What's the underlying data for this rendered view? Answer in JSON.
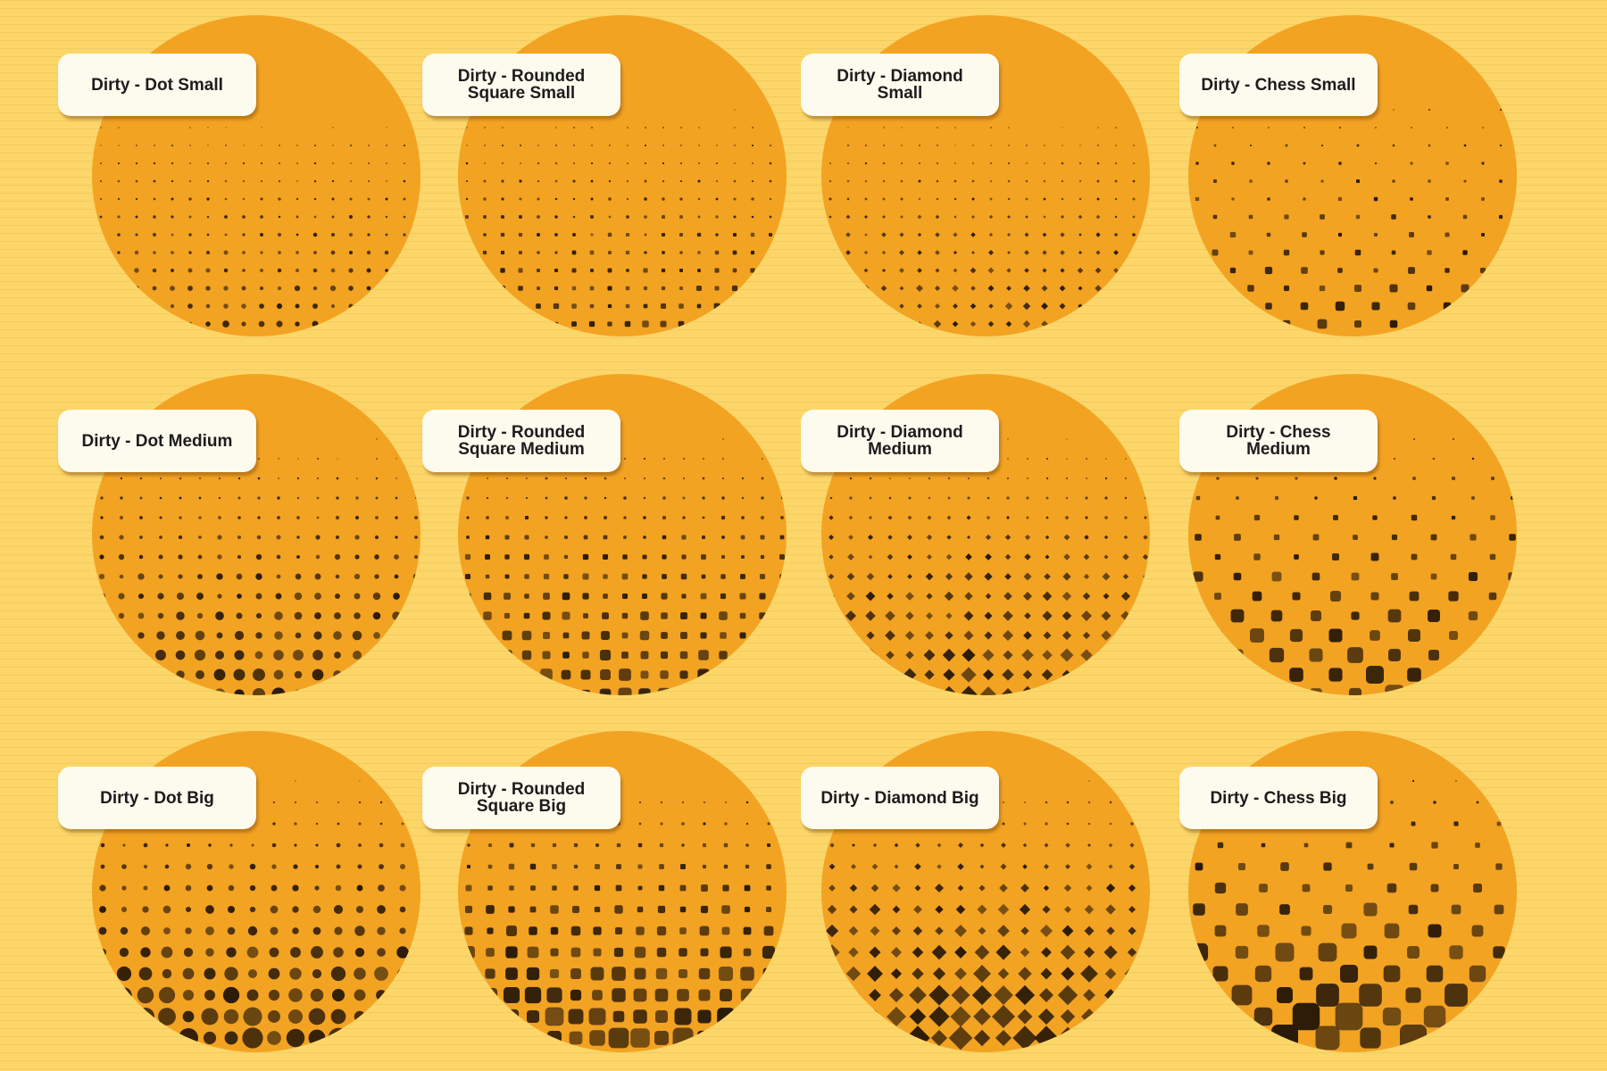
{
  "colors": {
    "background": "#fcd669",
    "circle": "#f3a322",
    "ink": "#2a1a08",
    "label_bg": "#fdfaee"
  },
  "swatches": [
    {
      "label": "Dirty - Dot Small",
      "shape": "dot",
      "size": "small"
    },
    {
      "label": "Dirty - Rounded Square Small",
      "shape": "rounded-square",
      "size": "small"
    },
    {
      "label": "Dirty - Diamond Small",
      "shape": "diamond",
      "size": "small"
    },
    {
      "label": "Dirty - Chess Small",
      "shape": "chess",
      "size": "small"
    },
    {
      "label": "Dirty - Dot Medium",
      "shape": "dot",
      "size": "medium"
    },
    {
      "label": "Dirty - Rounded Square Medium",
      "shape": "rounded-square",
      "size": "medium"
    },
    {
      "label": "Dirty - Diamond Medium",
      "shape": "diamond",
      "size": "medium"
    },
    {
      "label": "Dirty - Chess Medium",
      "shape": "chess",
      "size": "medium"
    },
    {
      "label": "Dirty - Dot Big",
      "shape": "dot",
      "size": "big"
    },
    {
      "label": "Dirty - Rounded Square Big",
      "shape": "rounded-square",
      "size": "big"
    },
    {
      "label": "Dirty - Diamond Big",
      "shape": "diamond",
      "size": "big"
    },
    {
      "label": "Dirty - Chess Big",
      "shape": "chess",
      "size": "big"
    }
  ]
}
